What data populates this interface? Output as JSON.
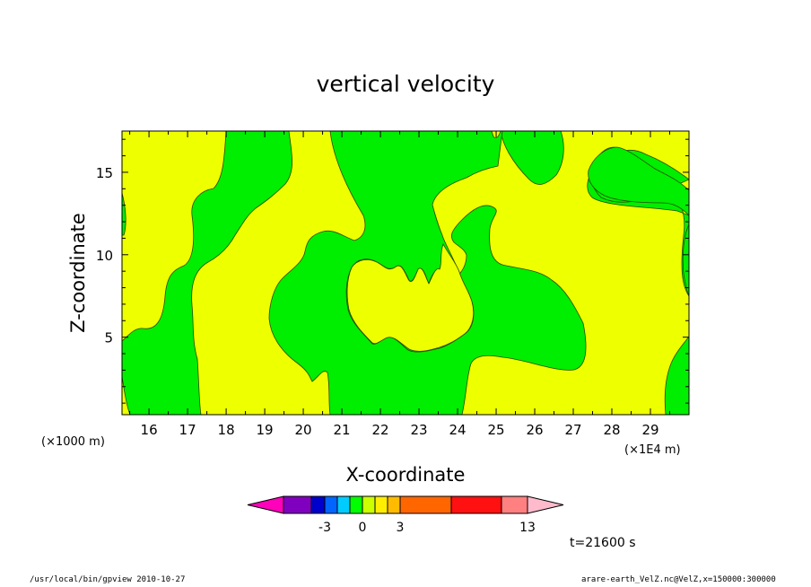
{
  "chart_data": {
    "type": "heatmap",
    "title": "vertical velocity",
    "xlabel": "X-coordinate",
    "ylabel": "Z-coordinate",
    "x_unit_left": "(×1000 m)",
    "x_unit_right": "(×1E4 m)",
    "x_ticks": [
      "16",
      "17",
      "18",
      "19",
      "20",
      "21",
      "22",
      "23",
      "24",
      "25",
      "26",
      "27",
      "28",
      "29"
    ],
    "y_ticks": [
      "5",
      "10",
      "15"
    ],
    "xlim": [
      15.3,
      30.0
    ],
    "ylim": [
      0.3,
      17.5
    ],
    "colorbar": {
      "colors": [
        "#ff00bb",
        "#7f00bf",
        "#0000cc",
        "#0066ff",
        "#00ccff",
        "#00ff00",
        "#ccff00",
        "#ffee00",
        "#ffbb00",
        "#ff6600",
        "#ff1111",
        "#ff8080",
        "#ffbbcc"
      ],
      "tick_labels": [
        "-3",
        "0",
        "3",
        "13"
      ]
    },
    "time_label": "t=21600 s",
    "region_colors": {
      "background": "#eeff00",
      "contour_fill": "#00ee00"
    }
  },
  "footer": {
    "left": "/usr/local/bin/gpview  2010-10-27",
    "right": "arare-earth_VelZ.nc@VelZ,x=150000:300000"
  }
}
